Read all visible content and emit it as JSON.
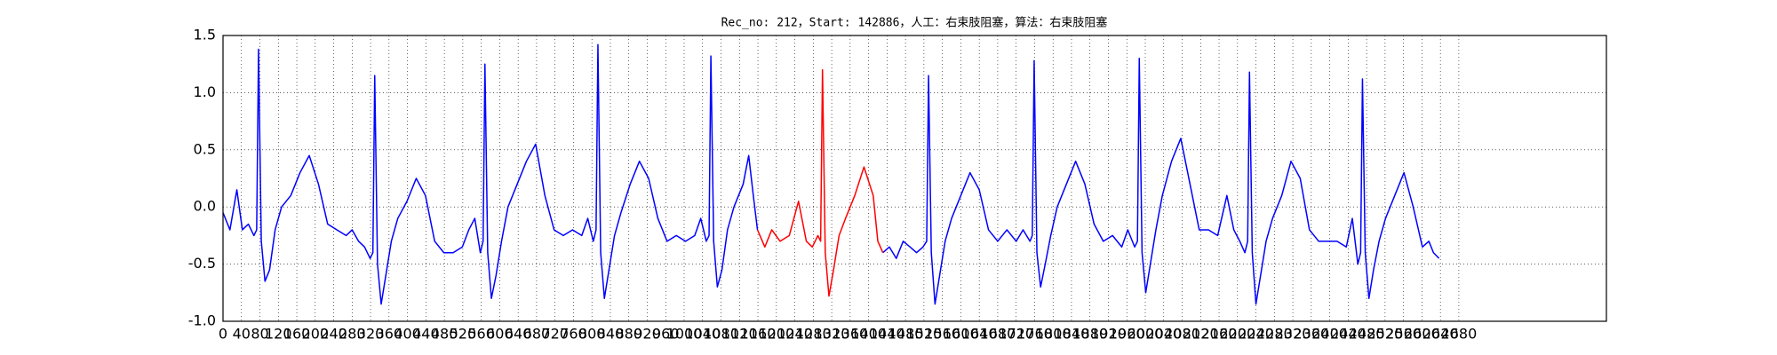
{
  "chart_data": {
    "type": "line",
    "title": "Rec_no: 212，Start: 142886，人工：右束肢阻塞，算法：右束肢阻塞",
    "xlim": [
      0,
      3000
    ],
    "ylim": [
      -1.0,
      1.5
    ],
    "xticks": [
      0,
      40,
      80,
      120,
      160,
      200,
      240,
      280,
      320,
      360,
      400,
      440,
      480,
      520,
      560,
      600,
      640,
      680,
      720,
      760,
      800,
      840,
      880,
      920,
      960,
      1000,
      1040,
      1080,
      1120,
      1160,
      1200,
      1240,
      1280,
      1320,
      1360,
      1400,
      1440,
      1480,
      1520,
      1560,
      1600,
      1640,
      1680,
      1720,
      1760,
      1800,
      1840,
      1880,
      1920,
      1960,
      2000,
      2040,
      2080,
      2120,
      2160,
      2200,
      2240,
      2280,
      2320,
      2360,
      2400,
      2440,
      2480,
      2520,
      2560,
      2600,
      2640,
      2680
    ],
    "yticks": [
      {
        "value": -1.0,
        "label": "-1.0"
      },
      -0.5,
      {
        "value": 0.0,
        "label": "0.0"
      },
      0.5,
      {
        "value": 1.0,
        "label": "1.0"
      },
      1.5
    ],
    "grid": true,
    "series": [
      {
        "color": "#0000ff",
        "x": [
          0,
          15,
          30,
          42,
          55,
          67,
          73,
          77,
          83,
          91,
          101,
          113,
          127,
          147,
          167,
          187,
          207,
          227,
          247,
          267,
          280,
          294,
          307,
          319,
          325,
          329,
          335,
          343,
          353,
          365,
          379,
          399,
          419,
          439,
          459,
          479,
          499,
          519,
          533,
          546,
          558,
          564,
          568,
          574,
          582,
          592,
          604,
          618,
          638,
          658,
          678,
          698,
          718,
          738,
          758,
          778,
          791,
          803,
          809,
          813,
          819,
          827,
          837,
          849,
          863,
          883,
          903,
          923,
          943,
          963,
          983,
          1003,
          1023,
          1036,
          1048,
          1054,
          1058,
          1064,
          1072,
          1082,
          1094,
          1108,
          1128,
          1140,
          1150,
          1159,
          1300,
          1431,
          1445,
          1460,
          1475,
          1490,
          1504,
          1518,
          1526,
          1530,
          1536,
          1544,
          1554,
          1566,
          1580,
          1600,
          1620,
          1640,
          1660,
          1680,
          1700,
          1720,
          1735,
          1750,
          1755,
          1759,
          1765,
          1773,
          1783,
          1795,
          1809,
          1829,
          1849,
          1869,
          1889,
          1909,
          1929,
          1949,
          1962,
          1977,
          1983,
          1987,
          1993,
          2001,
          2011,
          2023,
          2037,
          2057,
          2077,
          2097,
          2117,
          2137,
          2157,
          2177,
          2192,
          2205,
          2216,
          2222,
          2226,
          2232,
          2240,
          2250,
          2262,
          2276,
          2296,
          2316,
          2336,
          2356,
          2376,
          2396,
          2416,
          2436,
          2449,
          2461,
          2467,
          2471,
          2477,
          2485,
          2495,
          2507,
          2521,
          2541,
          2561,
          2581,
          2601,
          2615,
          2625,
          2637
        ],
        "values": [
          -0.05,
          -0.2,
          0.15,
          -0.2,
          -0.15,
          -0.25,
          -0.2,
          1.38,
          -0.3,
          -0.65,
          -0.55,
          -0.2,
          0.0,
          0.1,
          0.3,
          0.45,
          0.2,
          -0.15,
          -0.2,
          -0.25,
          -0.2,
          -0.3,
          -0.35,
          -0.45,
          -0.4,
          1.15,
          -0.5,
          -0.85,
          -0.6,
          -0.3,
          -0.1,
          0.05,
          0.25,
          0.1,
          -0.3,
          -0.4,
          -0.4,
          -0.35,
          -0.2,
          -0.1,
          -0.4,
          -0.3,
          1.25,
          -0.4,
          -0.8,
          -0.6,
          -0.3,
          0.0,
          0.2,
          0.4,
          0.55,
          0.1,
          -0.2,
          -0.25,
          -0.2,
          -0.25,
          -0.1,
          -0.3,
          -0.2,
          1.42,
          -0.4,
          -0.8,
          -0.55,
          -0.25,
          -0.05,
          0.2,
          0.4,
          0.25,
          -0.1,
          -0.3,
          -0.25,
          -0.3,
          -0.25,
          -0.1,
          -0.3,
          -0.25,
          1.32,
          -0.3,
          -0.7,
          -0.55,
          -0.2,
          0.0,
          0.2,
          0.45,
          0.1,
          -0.2,
          null,
          -0.4,
          -0.35,
          -0.45,
          -0.3,
          -0.35,
          -0.4,
          -0.35,
          -0.3,
          1.15,
          -0.4,
          -0.85,
          -0.6,
          -0.3,
          -0.1,
          0.1,
          0.3,
          0.15,
          -0.2,
          -0.3,
          -0.2,
          -0.3,
          -0.2,
          -0.3,
          -0.25,
          1.28,
          -0.4,
          -0.7,
          -0.5,
          -0.25,
          0.0,
          0.2,
          0.4,
          0.2,
          -0.15,
          -0.3,
          -0.25,
          -0.35,
          -0.2,
          -0.35,
          -0.3,
          1.3,
          -0.4,
          -0.75,
          -0.5,
          -0.2,
          0.1,
          0.4,
          0.6,
          0.2,
          -0.2,
          -0.2,
          -0.25,
          0.1,
          -0.2,
          -0.3,
          -0.4,
          -0.3,
          1.18,
          -0.4,
          -0.85,
          -0.6,
          -0.3,
          -0.1,
          0.1,
          0.4,
          0.25,
          -0.2,
          -0.3,
          -0.3,
          -0.3,
          -0.35,
          -0.1,
          -0.5,
          -0.4,
          1.12,
          -0.4,
          -0.8,
          -0.55,
          -0.3,
          -0.1,
          0.1,
          0.3,
          0.0,
          -0.35,
          -0.3,
          -0.4,
          -0.45
        ]
      },
      {
        "color": "#ff0000",
        "x": [
          1159,
          1175,
          1190,
          1208,
          1228,
          1248,
          1265,
          1278,
          1290,
          1296,
          1300,
          1306,
          1314,
          1324,
          1336,
          1350,
          1370,
          1390,
          1410,
          1420,
          1431
        ],
        "values": [
          -0.2,
          -0.35,
          -0.2,
          -0.3,
          -0.25,
          0.05,
          -0.3,
          -0.35,
          -0.25,
          -0.3,
          1.2,
          -0.4,
          -0.78,
          -0.55,
          -0.25,
          -0.1,
          0.1,
          0.35,
          0.1,
          -0.3,
          -0.4
        ]
      }
    ]
  }
}
